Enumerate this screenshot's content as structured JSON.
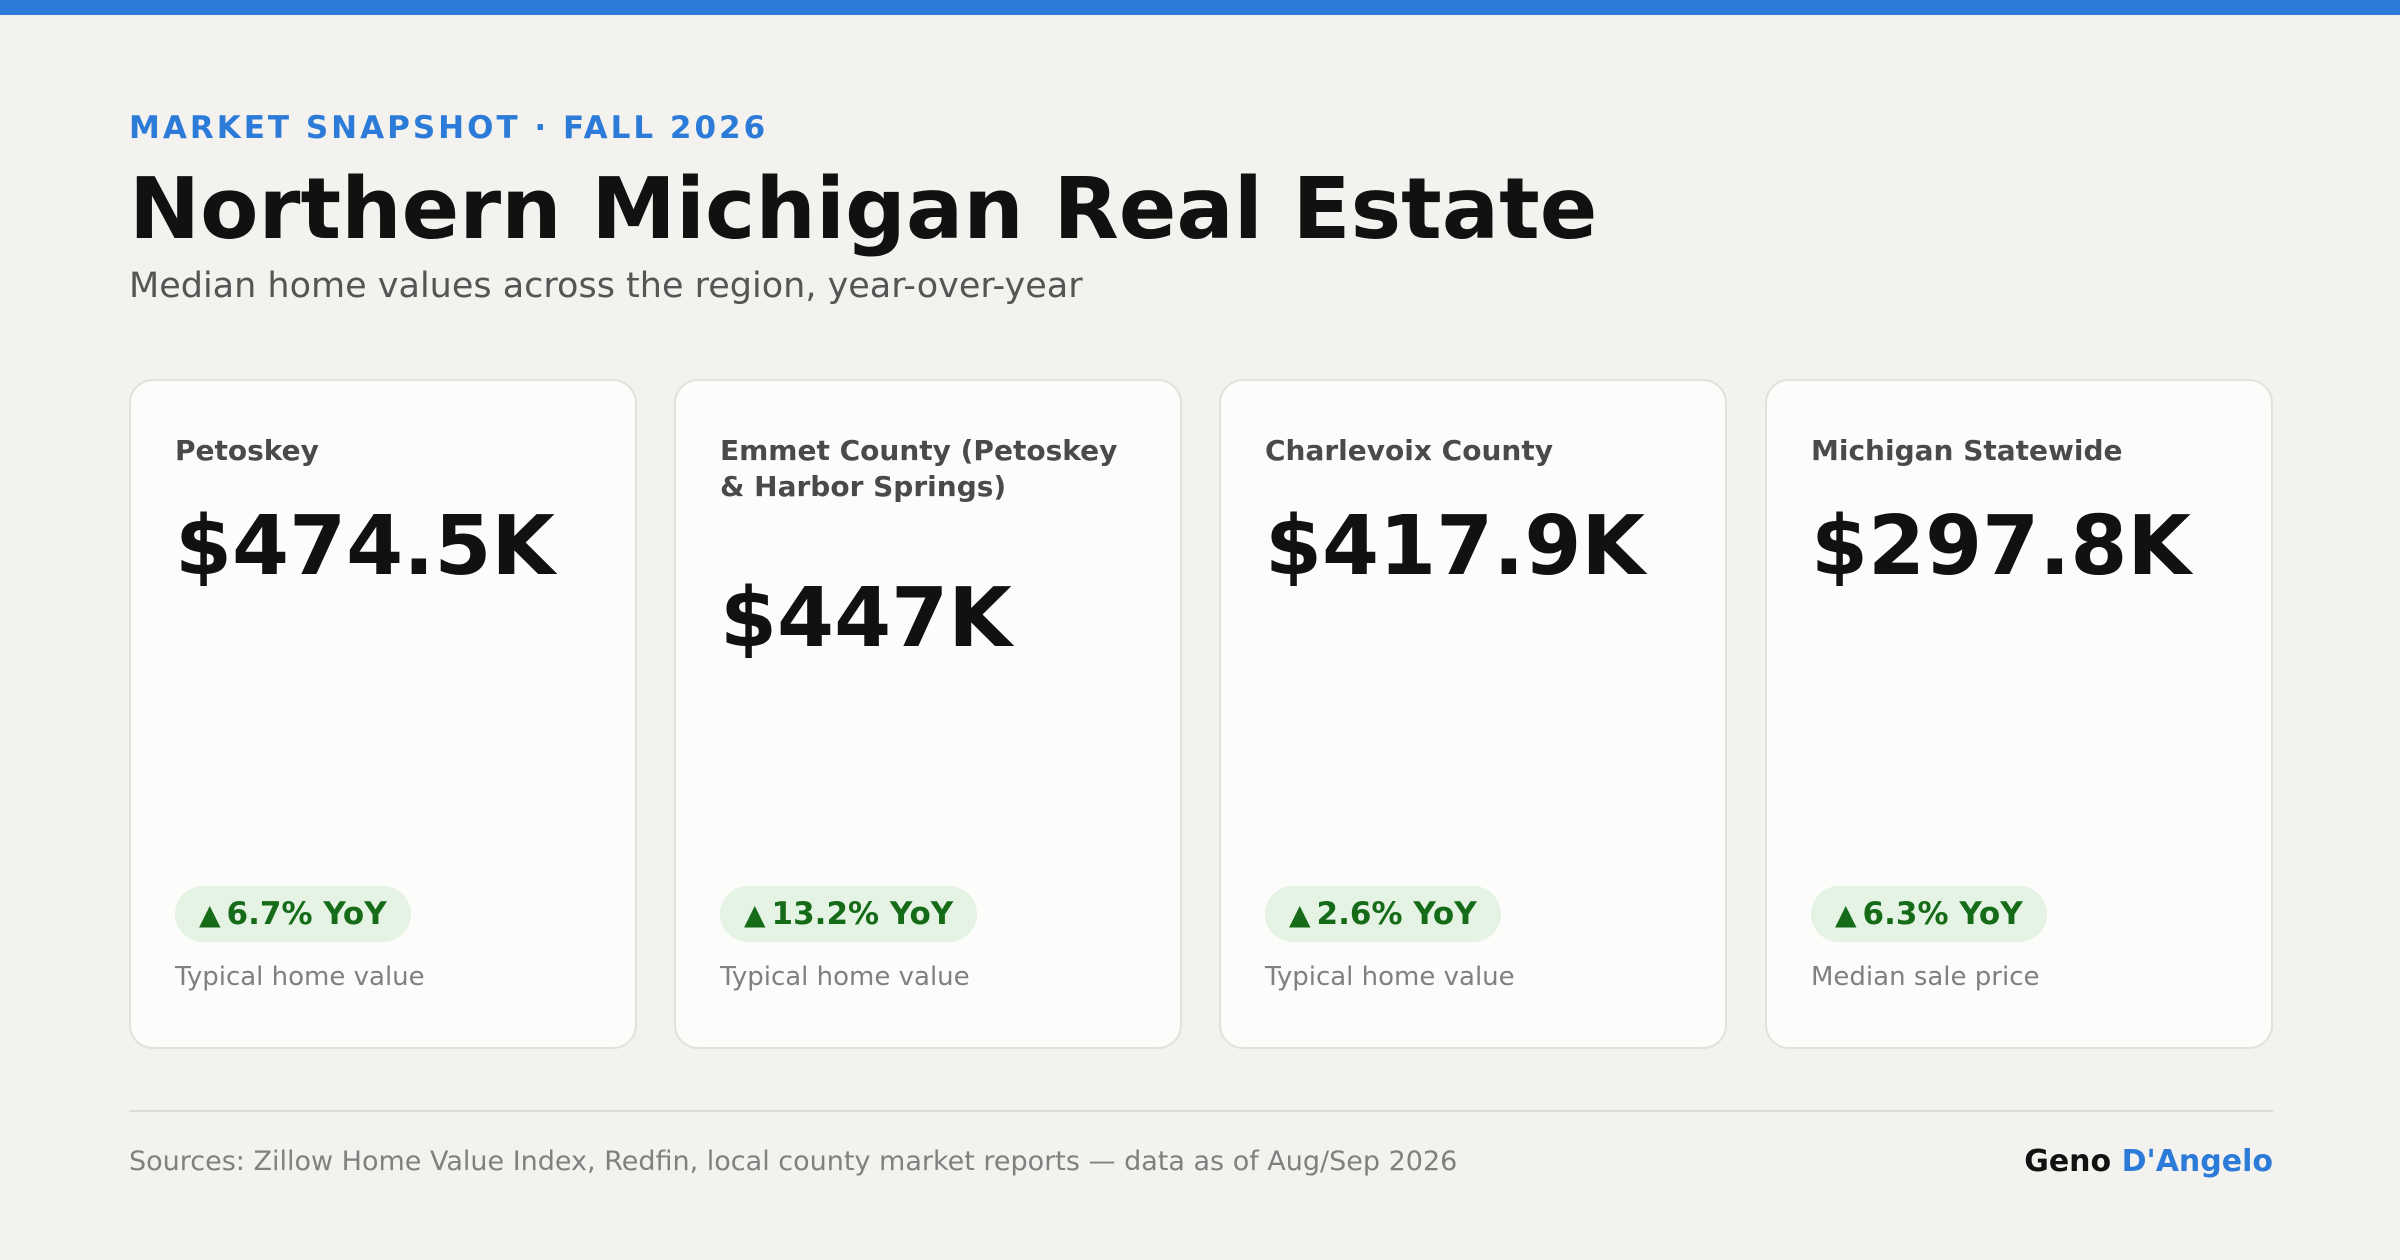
{
  "header": {
    "eyebrow": "MARKET SNAPSHOT · FALL 2026",
    "title": "Northern Michigan Real Estate",
    "subtitle": "Median home values across the region, year-over-year"
  },
  "cards": [
    {
      "name": "Petoskey",
      "value": "$474.5K",
      "change": "6.7% YoY",
      "caption": "Typical home value"
    },
    {
      "name": "Emmet County (Petoskey & Harbor Springs)",
      "value": "$447K",
      "change": "13.2% YoY",
      "caption": "Typical home value"
    },
    {
      "name": "Charlevoix County",
      "value": "$417.9K",
      "change": "2.6% YoY",
      "caption": "Typical home value"
    },
    {
      "name": "Michigan Statewide",
      "value": "$297.8K",
      "change": "6.3% YoY",
      "caption": "Median sale price"
    }
  ],
  "badge_arrow": "▲",
  "footer": {
    "sources": "Sources: Zillow Home Value Index, Redfin, local county market reports — data as of Aug/Sep 2026",
    "brand_first": "Geno",
    "brand_last": "D'Angelo"
  },
  "colors": {
    "accent": "#2d7bd8",
    "positive": "#156b18",
    "positive_bg": "#e4f3e3",
    "background": "#f3f2ee"
  }
}
